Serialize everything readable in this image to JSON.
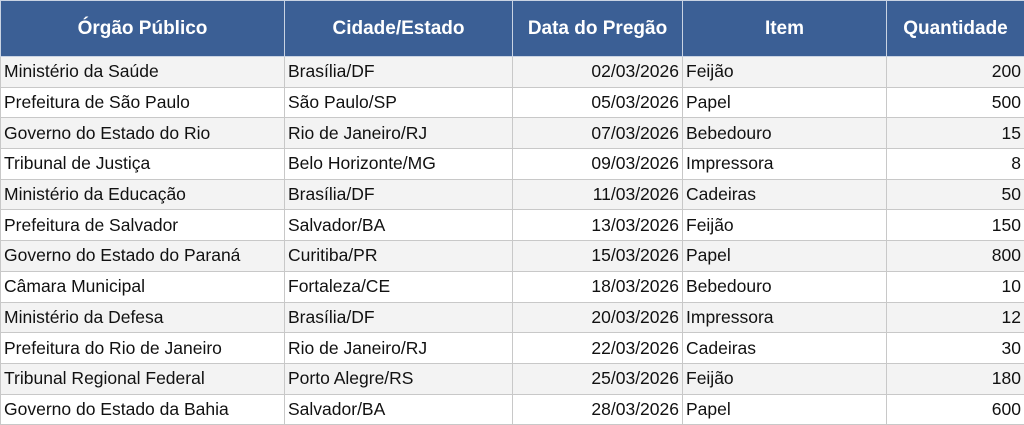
{
  "headers": [
    "Órgão Público",
    "Cidade/Estado",
    "Data do Pregão",
    "Item",
    "Quantidade"
  ],
  "colors": {
    "header_bg": "#3b5f95",
    "header_text": "#ffffff",
    "stripe": "#f3f3f3"
  },
  "rows": [
    [
      "Ministério da Saúde",
      "Brasília/DF",
      "02/03/2026",
      "Feijão",
      "200"
    ],
    [
      "Prefeitura de São Paulo",
      "São Paulo/SP",
      "05/03/2026",
      "Papel",
      "500"
    ],
    [
      "Governo do Estado do Rio",
      "Rio de Janeiro/RJ",
      "07/03/2026",
      "Bebedouro",
      "15"
    ],
    [
      "Tribunal de Justiça",
      "Belo Horizonte/MG",
      "09/03/2026",
      "Impressora",
      "8"
    ],
    [
      "Ministério da Educação",
      "Brasília/DF",
      "11/03/2026",
      "Cadeiras",
      "50"
    ],
    [
      "Prefeitura de Salvador",
      "Salvador/BA",
      "13/03/2026",
      "Feijão",
      "150"
    ],
    [
      "Governo do Estado do Paraná",
      "Curitiba/PR",
      "15/03/2026",
      "Papel",
      "800"
    ],
    [
      "Câmara Municipal",
      "Fortaleza/CE",
      "18/03/2026",
      "Bebedouro",
      "10"
    ],
    [
      "Ministério da Defesa",
      "Brasília/DF",
      "20/03/2026",
      "Impressora",
      "12"
    ],
    [
      "Prefeitura do Rio de Janeiro",
      "Rio de Janeiro/RJ",
      "22/03/2026",
      "Cadeiras",
      "30"
    ],
    [
      "Tribunal Regional Federal",
      "Porto Alegre/RS",
      "25/03/2026",
      "Feijão",
      "180"
    ],
    [
      "Governo do Estado da Bahia",
      "Salvador/BA",
      "28/03/2026",
      "Papel",
      "600"
    ]
  ]
}
